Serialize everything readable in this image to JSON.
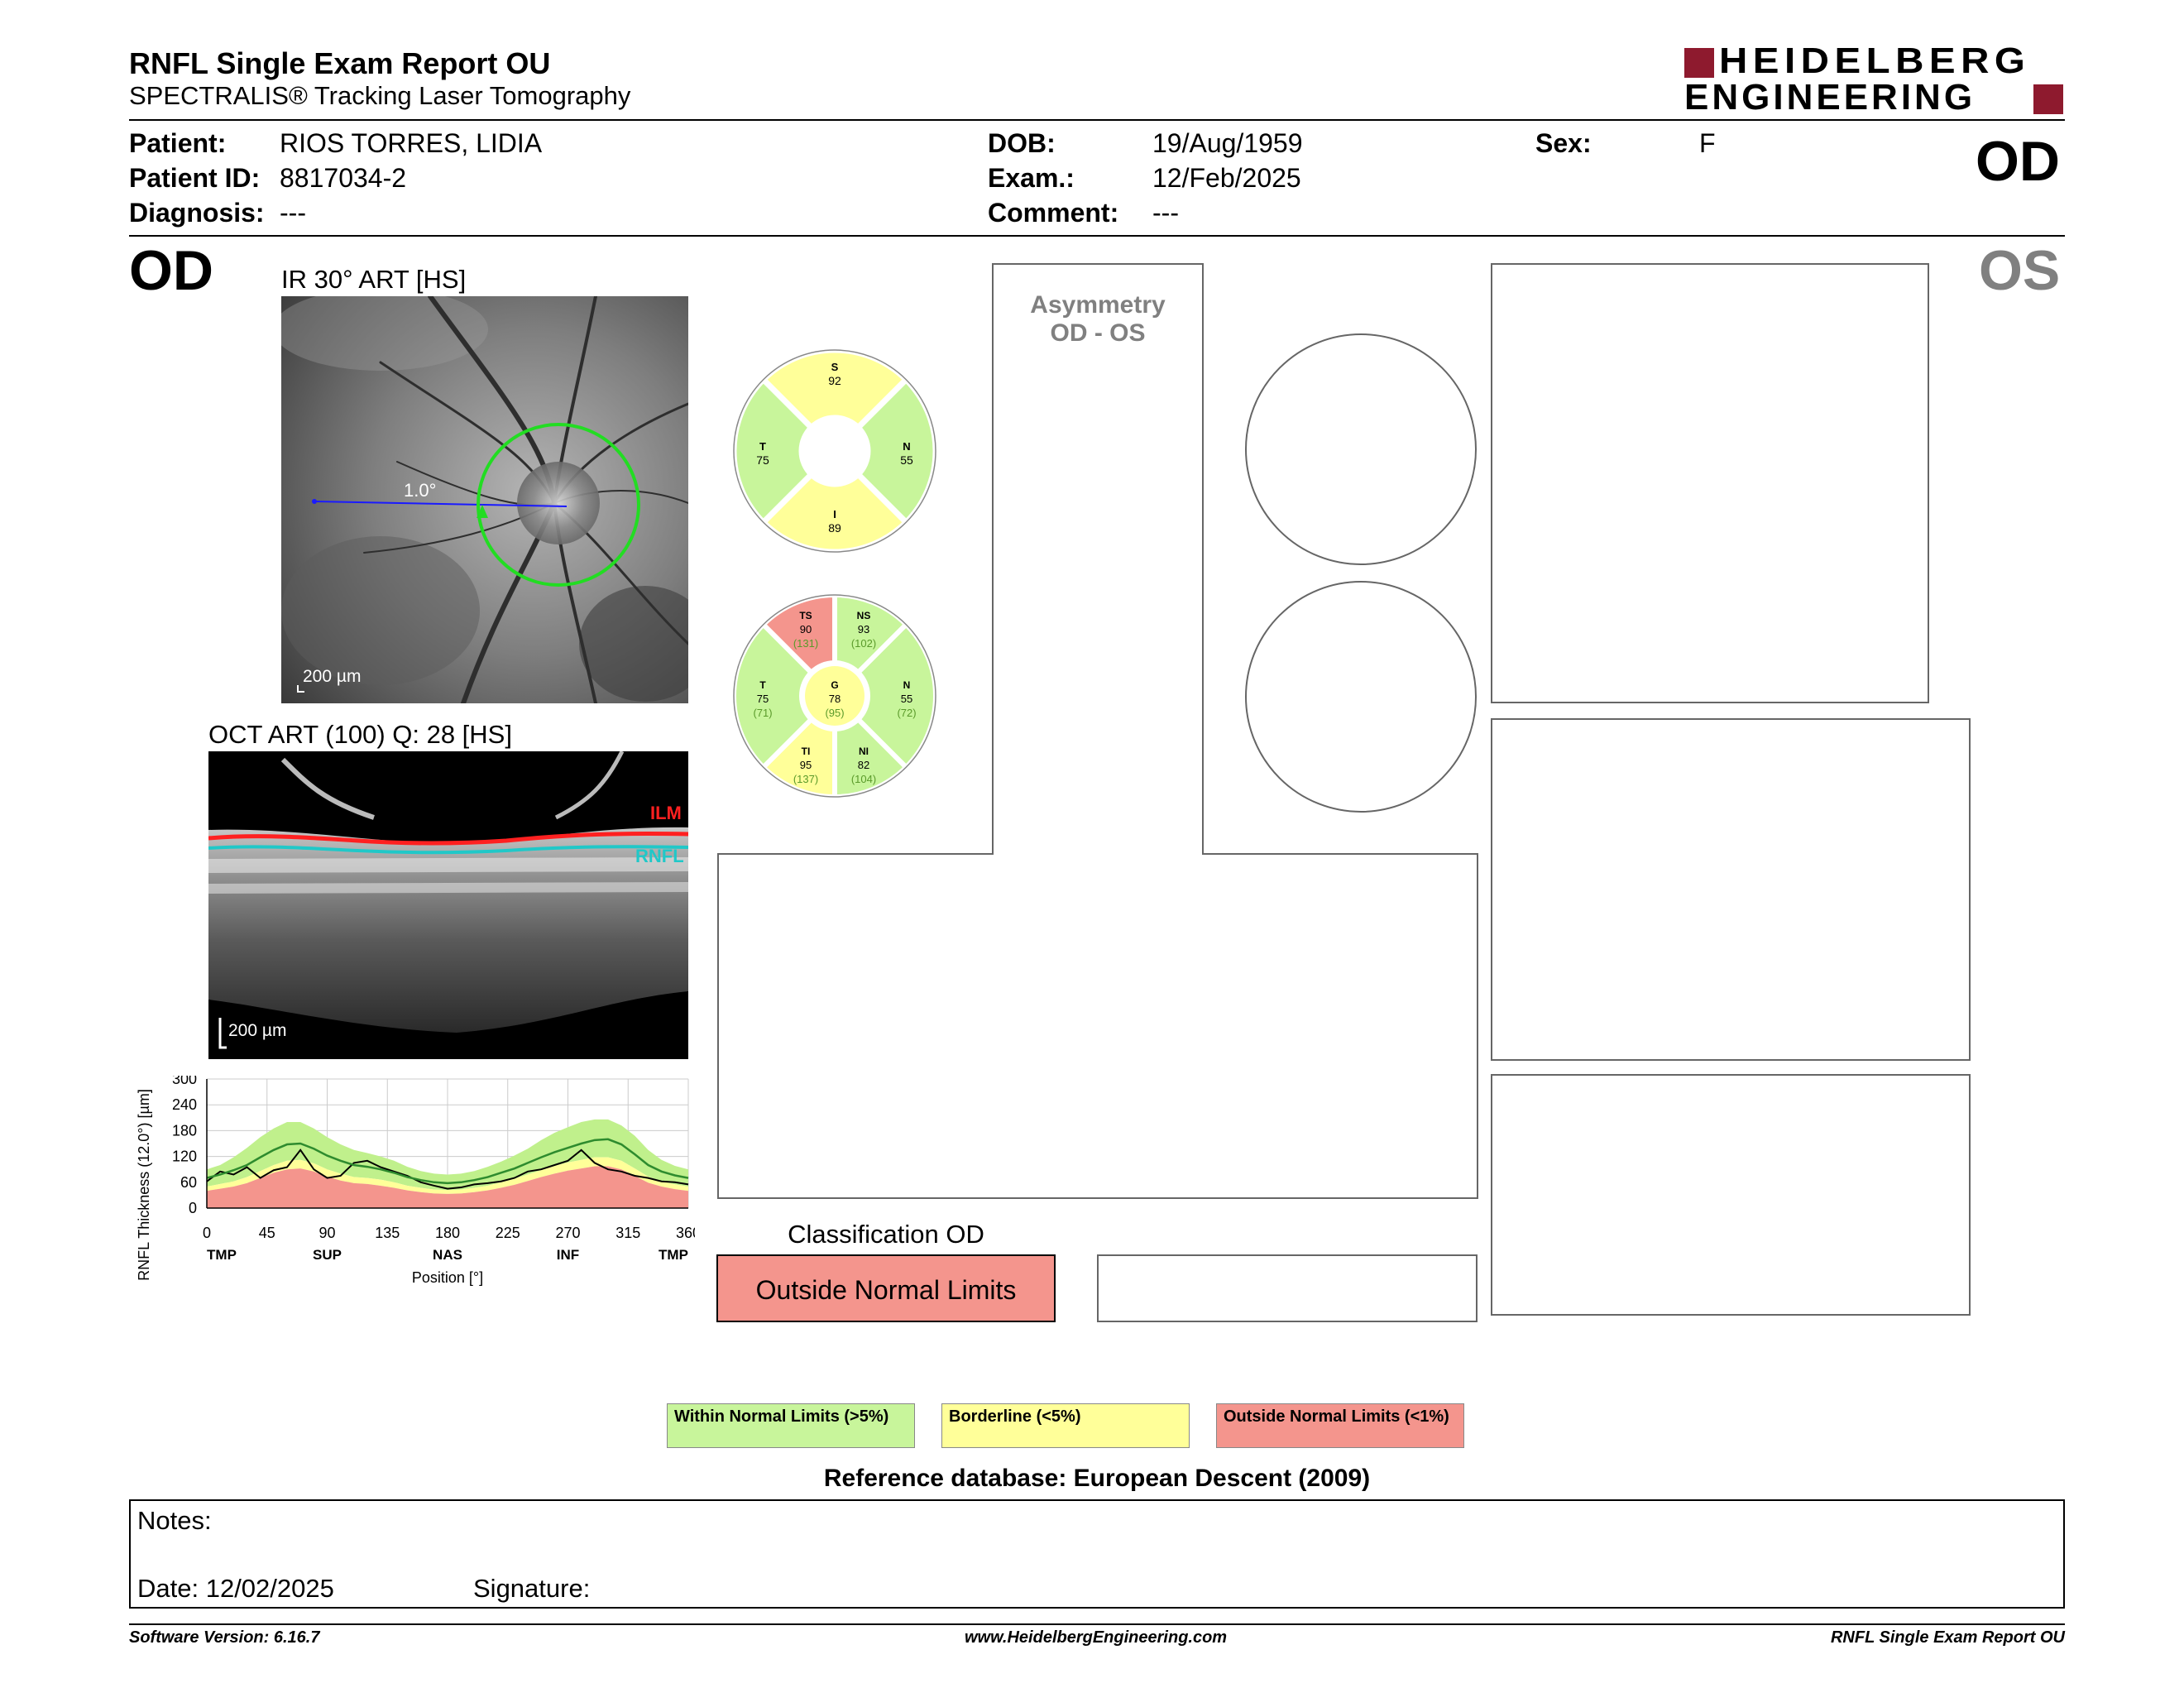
{
  "header": {
    "title": "RNFL Single Exam Report OU",
    "subtitle": "SPECTRALIS® Tracking Laser Tomography",
    "brand_line1": "HEIDELBERG",
    "brand_line2": "ENGINEERING",
    "brand_color": "#8e1a2e",
    "eye_badge": "OD"
  },
  "patient": {
    "patient_label": "Patient:",
    "patient_value": "RIOS TORRES, LIDIA",
    "id_label": "Patient ID:",
    "id_value": "8817034-2",
    "diagnosis_label": "Diagnosis:",
    "diagnosis_value": "---",
    "dob_label": "DOB:",
    "dob_value": "19/Aug/1959",
    "exam_label": "Exam.:",
    "exam_value": "12/Feb/2025",
    "comment_label": "Comment:",
    "comment_value": "---",
    "sex_label": "Sex:",
    "sex_value": "F"
  },
  "od": {
    "eye_label": "OD",
    "ir_title": "IR 30° ART [HS]",
    "ir_angle": "1.0°",
    "ir_scale": "200 µm",
    "oct_title": "OCT ART (100) Q: 28 [HS]",
    "oct_ilm": "ILM",
    "oct_rnfl": "RNFL",
    "oct_scale": "200 µm"
  },
  "os": {
    "eye_label": "OS"
  },
  "asymmetry": {
    "line1": "Asymmetry",
    "line2": "OD - OS"
  },
  "quadrant_chart": {
    "S": {
      "label": "S",
      "value": "92"
    },
    "T": {
      "label": "T",
      "value": "75"
    },
    "N": {
      "label": "N",
      "value": "55"
    },
    "I": {
      "label": "I",
      "value": "89"
    },
    "colors": {
      "S": "#ffff99",
      "T": "#c8f59b",
      "N": "#c8f59b",
      "I": "#ffff99"
    }
  },
  "sector_chart": {
    "TS": {
      "label": "TS",
      "value": "90",
      "ref": "(131)"
    },
    "NS": {
      "label": "NS",
      "value": "93",
      "ref": "(102)"
    },
    "T": {
      "label": "T",
      "value": "75",
      "ref": "(71)"
    },
    "N": {
      "label": "N",
      "value": "55",
      "ref": "(72)"
    },
    "TI": {
      "label": "TI",
      "value": "95",
      "ref": "(137)"
    },
    "NI": {
      "label": "NI",
      "value": "82",
      "ref": "(104)"
    },
    "G": {
      "label": "G",
      "value": "78",
      "ref": "(95)"
    },
    "colors": {
      "TS": "#f4958d",
      "NS": "#c8f59b",
      "T": "#c8f59b",
      "N": "#c8f59b",
      "TI": "#ffff99",
      "NI": "#c8f59b",
      "G": "#ffff99"
    }
  },
  "chart_data": {
    "type": "line",
    "ylabel": "RNFL Thickness (12.0°) [µm]",
    "xlabel": "Position [°]",
    "ylim": [
      0,
      300
    ],
    "xlim": [
      0,
      360
    ],
    "yticks": [
      "0",
      "60",
      "120",
      "180",
      "240",
      "300"
    ],
    "xticks": [
      "0",
      "45",
      "90",
      "135",
      "180",
      "225",
      "270",
      "315",
      "360"
    ],
    "sector_labels": [
      "TMP",
      "SUP",
      "NAS",
      "INF",
      "TMP"
    ],
    "x": [
      0,
      10,
      20,
      30,
      40,
      50,
      60,
      70,
      80,
      90,
      100,
      110,
      120,
      130,
      140,
      150,
      160,
      170,
      180,
      190,
      200,
      210,
      220,
      230,
      240,
      250,
      260,
      270,
      280,
      290,
      300,
      310,
      320,
      330,
      340,
      350,
      360
    ],
    "series": [
      {
        "values": [
          62,
          85,
          78,
          95,
          70,
          88,
          95,
          135,
          90,
          70,
          75,
          105,
          110,
          95,
          85,
          75,
          60,
          52,
          45,
          48,
          55,
          58,
          62,
          70,
          85,
          90,
          100,
          110,
          135,
          105,
          90,
          85,
          75,
          70,
          62,
          60,
          55
        ],
        "color": "#000000"
      },
      {
        "values": [
          70,
          78,
          88,
          100,
          118,
          135,
          148,
          150,
          138,
          122,
          110,
          100,
          96,
          90,
          82,
          72,
          65,
          60,
          58,
          60,
          65,
          72,
          82,
          92,
          105,
          118,
          130,
          140,
          150,
          158,
          160,
          148,
          125,
          100,
          85,
          76,
          70
        ],
        "color": "#2e8b2e"
      }
    ],
    "bands": {
      "green_upper": [
        90,
        100,
        118,
        140,
        165,
        185,
        200,
        200,
        185,
        165,
        148,
        135,
        128,
        120,
        110,
        96,
        86,
        80,
        78,
        80,
        86,
        96,
        108,
        122,
        138,
        158,
        175,
        188,
        200,
        206,
        206,
        192,
        168,
        135,
        112,
        98,
        90
      ],
      "green_lower": [
        50,
        56,
        62,
        72,
        86,
        100,
        110,
        112,
        104,
        90,
        80,
        72,
        70,
        66,
        60,
        52,
        47,
        43,
        42,
        43,
        47,
        52,
        60,
        68,
        78,
        88,
        98,
        106,
        112,
        118,
        118,
        110,
        92,
        73,
        62,
        55,
        50
      ],
      "yellow_lower": [
        40,
        45,
        50,
        58,
        70,
        82,
        90,
        92,
        85,
        73,
        64,
        58,
        56,
        52,
        47,
        41,
        37,
        34,
        33,
        34,
        37,
        41,
        47,
        54,
        63,
        72,
        80,
        87,
        92,
        97,
        97,
        90,
        75,
        59,
        50,
        44,
        40
      ],
      "red_upper": [
        40,
        45,
        50,
        58,
        70,
        82,
        90,
        92,
        85,
        73,
        64,
        58,
        56,
        52,
        47,
        41,
        37,
        34,
        33,
        34,
        37,
        41,
        47,
        54,
        63,
        72,
        80,
        87,
        92,
        97,
        97,
        90,
        75,
        59,
        50,
        44,
        40
      ]
    },
    "band_colors": {
      "green": "#c0f08c",
      "yellow": "#ffff99",
      "red": "#f4958d"
    }
  },
  "classification": {
    "title": "Classification OD",
    "result": "Outside Normal Limits",
    "result_color": "#f4958d"
  },
  "legend": {
    "within": "Within Normal Limits (>5%)",
    "borderline": "Borderline (<5%)",
    "outside": "Outside Normal Limits (<1%)",
    "within_color": "#c8f59b",
    "borderline_color": "#ffff99",
    "outside_color": "#f4958d"
  },
  "reference_db": "Reference database: European Descent (2009)",
  "notes": {
    "notes_label": "Notes:",
    "date_label": "Date: 12/02/2025",
    "signature_label": "Signature:"
  },
  "footer": {
    "software": "Software Version: 6.16.7",
    "website": "www.HeidelbergEngineering.com",
    "report_name": "RNFL Single Exam Report OU"
  }
}
